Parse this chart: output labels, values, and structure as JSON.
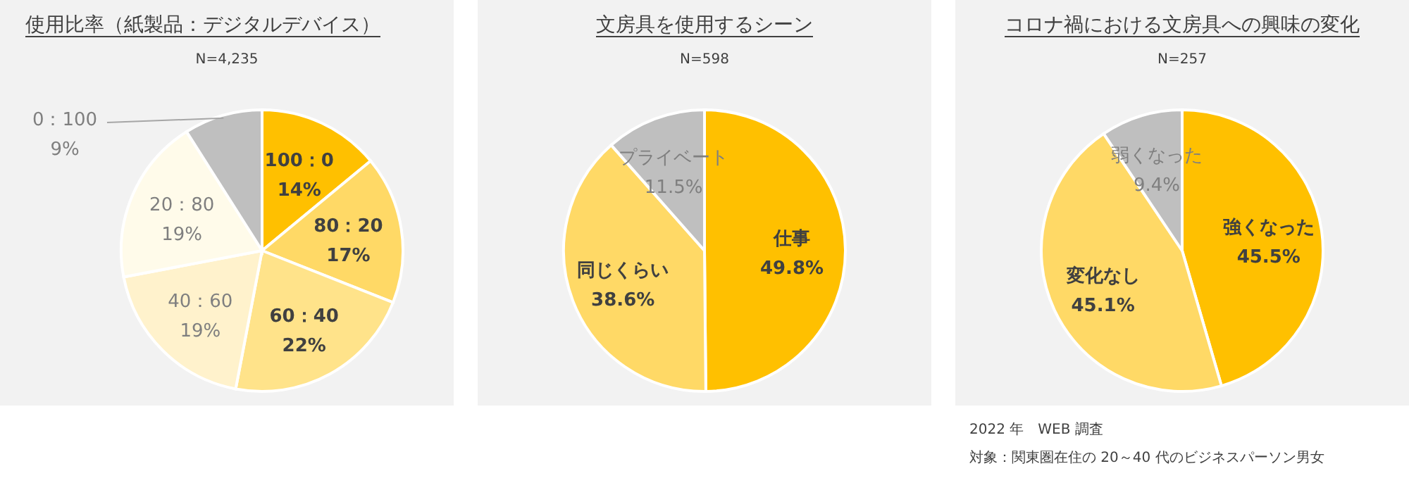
{
  "chart_data": [
    {
      "type": "pie",
      "title": "使用比率（紙製品：デジタルデバイス）",
      "subtitle": "N=4,235",
      "categories": [
        "100：0",
        "80：20",
        "60：40",
        "40：60",
        "20：80",
        "0：100"
      ],
      "values": [
        14,
        17,
        22,
        19,
        19,
        9
      ],
      "value_labels": [
        "14%",
        "17%",
        "22%",
        "19%",
        "19%",
        "9%"
      ],
      "colors": [
        "#ffc000",
        "#ffd966",
        "#ffe38a",
        "#fff2cc",
        "#fffbea",
        "#bfbfbf"
      ]
    },
    {
      "type": "pie",
      "title": "文房具を使用するシーン",
      "subtitle": "N=598",
      "categories": [
        "仕事",
        "同じくらい",
        "プライベート"
      ],
      "values": [
        49.8,
        38.6,
        11.5
      ],
      "value_labels": [
        "49.8%",
        "38.6%",
        "11.5%"
      ],
      "colors": [
        "#ffc000",
        "#ffd966",
        "#bfbfbf"
      ]
    },
    {
      "type": "pie",
      "title": "コロナ禍における文房具への興味の変化",
      "subtitle": "N=257",
      "categories": [
        "強くなった",
        "変化なし",
        "弱くなった"
      ],
      "values": [
        45.5,
        45.1,
        9.4
      ],
      "value_labels": [
        "45.5%",
        "45.1%",
        "9.4%"
      ],
      "colors": [
        "#ffc000",
        "#ffd966",
        "#bfbfbf"
      ],
      "annotations": [
        "2022 年　WEB 調査",
        "対象：関東圏在住の 20～40 代のビジネスパーソン男女"
      ]
    }
  ]
}
